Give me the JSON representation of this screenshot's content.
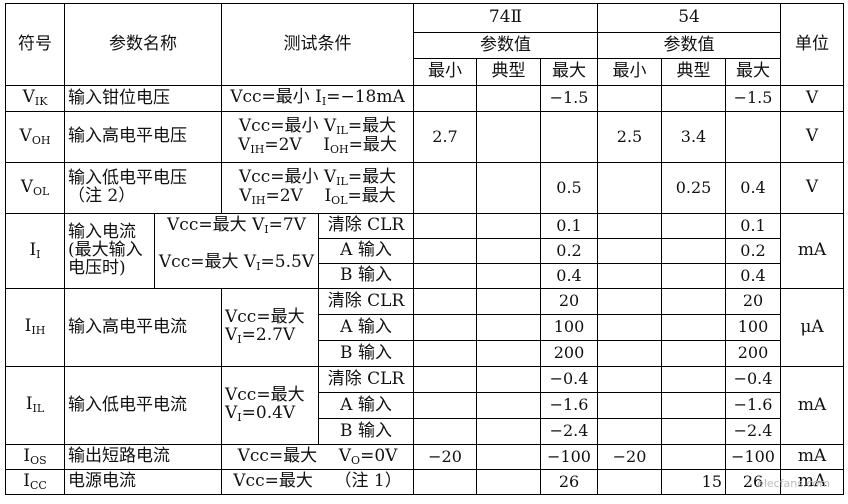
{
  "header": {
    "symbol": "符号",
    "param_name": "参数名称",
    "condition": "测试条件",
    "series_a": "74Ⅱ",
    "series_b": "54",
    "values": "参数值",
    "min": "最小",
    "typ": "典型",
    "max": "最大",
    "unit": "单位"
  },
  "rows": {
    "vik": {
      "sym": "V",
      "sub": "IK",
      "name": "输入钳位电压",
      "cond1": "Vcc=最小 I",
      "cond1sub": "I",
      "cond1b": "=−18mA",
      "a_max": "−1.5",
      "b_max": "−1.5",
      "unit": "V"
    },
    "voh": {
      "sym": "V",
      "sub": "OH",
      "name": "输入高电平电压",
      "l1a": "Vcc=最小",
      "l1b": "V",
      "l1bsub": "IL",
      "l1c": "=最大",
      "l2a": "V",
      "l2asub": "IH",
      "l2b": "=2V",
      "l2c": "I",
      "l2csub": "OH",
      "l2d": "=最大",
      "a_min": "2.7",
      "b_min": "2.5",
      "b_typ": "3.4",
      "unit": "V"
    },
    "vol": {
      "sym": "V",
      "sub": "OL",
      "name1": "输入低电平电压",
      "name2": "（注 2）",
      "l1a": "Vcc=最小",
      "l1b": "V",
      "l1bsub": "IL",
      "l1c": "=最大",
      "l2a": "V",
      "l2asub": "IH",
      "l2b": "=2V",
      "l2c": "I",
      "l2csub": "OL",
      "l2d": "=最大",
      "a_max": "0.5",
      "b_typ": "0.25",
      "b_max": "0.4",
      "unit": "V"
    },
    "ii": {
      "sym": "I",
      "sub": "I",
      "name1": "输入电流",
      "name2": "(最大输入",
      "name3": "电压时)",
      "c1a": "Vcc=最大 V",
      "c1sub": "I",
      "c1b": "=7V",
      "c2a": "Vcc=最大 V",
      "c2sub": "I",
      "c2b": "=5.5V",
      "s1": "清除 CLR",
      "s2": "A 输入",
      "s3": "B 输入",
      "a1": "0.1",
      "a2": "0.2",
      "a3": "0.4",
      "b1": "0.1",
      "b2": "0.2",
      "b3": "0.4",
      "unit": "mA"
    },
    "iih": {
      "sym": "I",
      "sub": "IH",
      "name": "输入高电平电流",
      "c1": "Vcc=最大",
      "c2a": "V",
      "c2sub": "I",
      "c2b": "=2.7V",
      "s1": "清除 CLR",
      "s2": "A 输入",
      "s3": "B 输入",
      "a1": "20",
      "a2": "100",
      "a3": "200",
      "b1": "20",
      "b2": "100",
      "b3": "200",
      "unit": "μA"
    },
    "iil": {
      "sym": "I",
      "sub": "IL",
      "name": "输入低电平电流",
      "c1": "Vcc=最大",
      "c2a": "V",
      "c2sub": "I",
      "c2b": "=0.4V",
      "s1": "清除 CLR",
      "s2": "A 输入",
      "s3": "B 输入",
      "a1": "−0.4",
      "a2": "−1.6",
      "a3": "−2.4",
      "b1": "−0.4",
      "b2": "−1.6",
      "b3": "−2.4",
      "unit": "mA"
    },
    "ios": {
      "sym": "I",
      "sub": "OS",
      "name": "输出短路电流",
      "ca": "Vcc=最大",
      "cb": "V",
      "cbsub": "O",
      "cc": "=0V",
      "a_min": "−20",
      "a_max": "−100",
      "b_min": "−20",
      "b_max": "−100",
      "unit": "mA"
    },
    "icc": {
      "sym": "I",
      "sub": "CC",
      "name": "电源电流",
      "ca": "Vcc=最大",
      "cb": "（注 1）",
      "a_max": "26",
      "b_typ": "15",
      "b_max": "26",
      "unit": "mA"
    }
  },
  "watermark": "elecfans.com"
}
